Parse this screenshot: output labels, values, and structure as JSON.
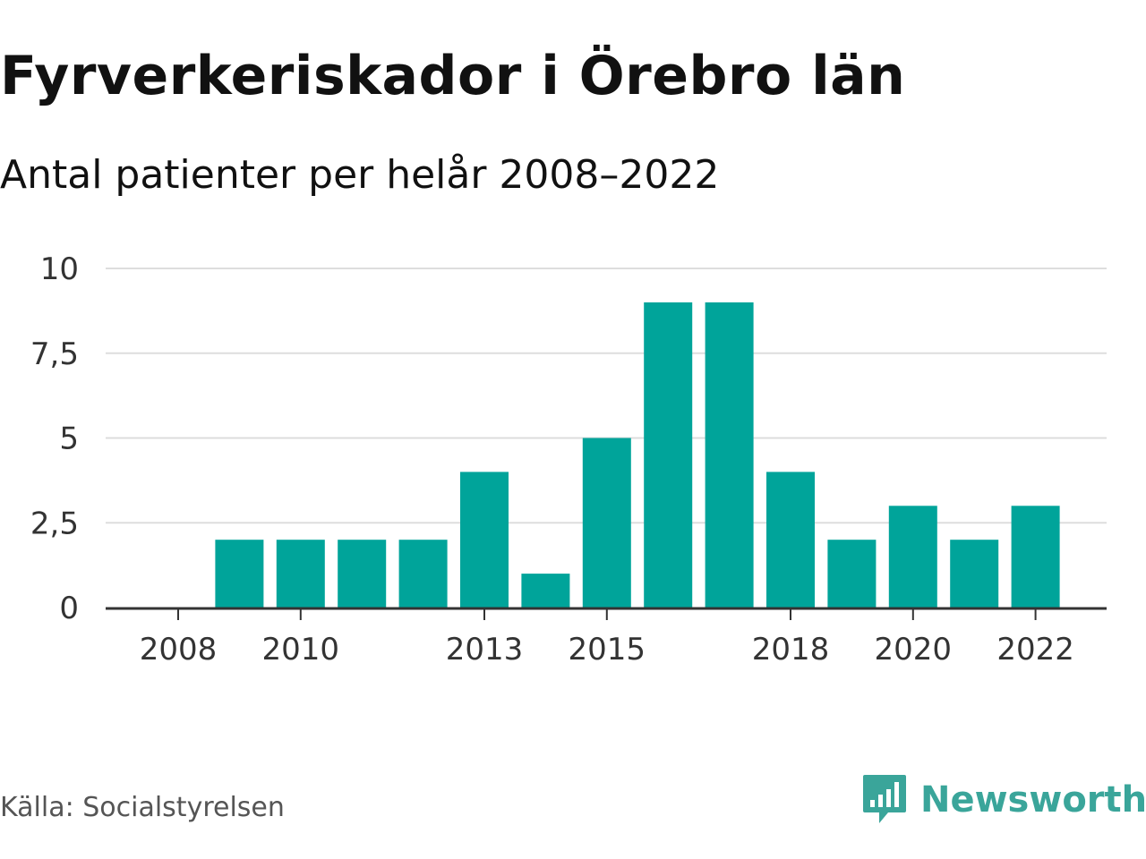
{
  "header": {
    "title": "Fyrverkeriskador i Örebro län",
    "subtitle": "Antal patienter per helår 2008–2022"
  },
  "footer": {
    "source": "Källa: Socialstyrelsen",
    "brand": "Newsworthy",
    "brand_icon": "newsworthy-logo-icon"
  },
  "colors": {
    "bar": "#00a49a",
    "brand": "#3aa59a",
    "grid": "#dddddd",
    "axis": "#333333"
  },
  "chart_data": {
    "type": "bar",
    "categories": [
      "2008",
      "2009",
      "2010",
      "2011",
      "2012",
      "2013",
      "2014",
      "2015",
      "2016",
      "2017",
      "2018",
      "2019",
      "2020",
      "2021",
      "2022"
    ],
    "values": [
      0,
      2,
      2,
      2,
      2,
      4,
      1,
      5,
      9,
      9,
      4,
      2,
      3,
      2,
      3
    ],
    "x_tick_labels": [
      "2008",
      "2010",
      "2013",
      "2015",
      "2018",
      "2020",
      "2022"
    ],
    "y_ticks": [
      0,
      2.5,
      5,
      7.5,
      10
    ],
    "y_tick_labels": [
      "0",
      "2,5",
      "5",
      "7,5",
      "10"
    ],
    "ylim": [
      0,
      10
    ],
    "grid": true,
    "legend": "none"
  }
}
